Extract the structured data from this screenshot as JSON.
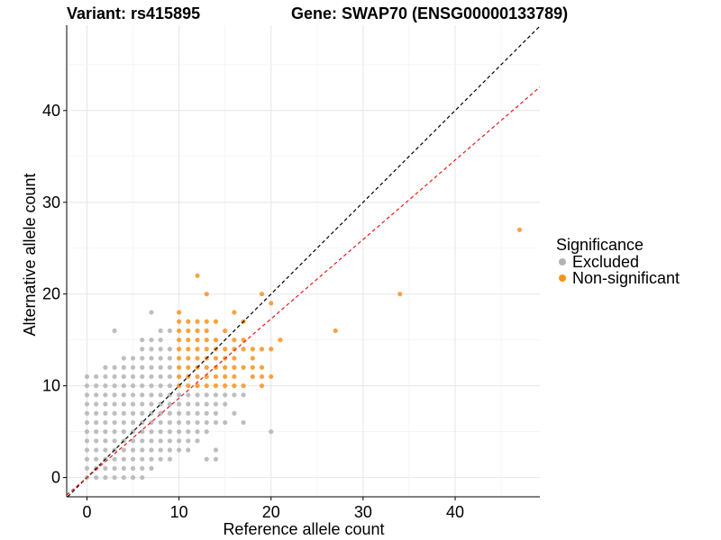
{
  "header": {
    "variant": "Variant: rs415895",
    "gene": "Gene: SWAP70 (ENSG00000133789)"
  },
  "legend": {
    "title": "Significance",
    "items": [
      {
        "label": "Excluded",
        "color": "#b3b3b3"
      },
      {
        "label": "Non-significant",
        "color": "#f7931e"
      }
    ]
  },
  "chart_data": {
    "type": "scatter",
    "xlabel": "Reference allele count",
    "ylabel": "Alternative allele count",
    "xlim": [
      -2.2,
      49.2
    ],
    "ylim": [
      -2.1,
      49.3
    ],
    "xticks": [
      0,
      10,
      20,
      30,
      40
    ],
    "yticks": [
      0,
      10,
      20,
      30,
      40
    ],
    "grid": true,
    "legend_position": "right",
    "reference_lines": [
      {
        "slope": 1.0,
        "intercept": 0,
        "color": "#000000",
        "style": "dashed"
      },
      {
        "slope": 0.865,
        "intercept": 0,
        "color": "#e41a1c",
        "style": "dashed"
      }
    ],
    "series": [
      {
        "name": "Excluded",
        "color": "#b3b3b3",
        "points": [
          [
            0,
            0
          ],
          [
            0,
            1
          ],
          [
            0,
            2
          ],
          [
            0,
            3
          ],
          [
            0,
            4
          ],
          [
            0,
            5
          ],
          [
            0,
            6
          ],
          [
            0,
            7
          ],
          [
            0,
            8
          ],
          [
            0,
            9
          ],
          [
            0,
            10
          ],
          [
            0,
            11
          ],
          [
            1,
            0
          ],
          [
            1,
            1
          ],
          [
            1,
            2
          ],
          [
            1,
            3
          ],
          [
            1,
            4
          ],
          [
            1,
            5
          ],
          [
            1,
            6
          ],
          [
            1,
            7
          ],
          [
            1,
            8
          ],
          [
            1,
            9
          ],
          [
            1,
            10
          ],
          [
            1,
            11
          ],
          [
            2,
            0
          ],
          [
            2,
            1
          ],
          [
            2,
            2
          ],
          [
            2,
            3
          ],
          [
            2,
            4
          ],
          [
            2,
            5
          ],
          [
            2,
            6
          ],
          [
            2,
            7
          ],
          [
            2,
            8
          ],
          [
            2,
            9
          ],
          [
            2,
            10
          ],
          [
            2,
            11
          ],
          [
            2,
            12
          ],
          [
            3,
            0
          ],
          [
            3,
            1
          ],
          [
            3,
            2
          ],
          [
            3,
            3
          ],
          [
            3,
            4
          ],
          [
            3,
            5
          ],
          [
            3,
            6
          ],
          [
            3,
            7
          ],
          [
            3,
            8
          ],
          [
            3,
            9
          ],
          [
            3,
            10
          ],
          [
            3,
            11
          ],
          [
            3,
            12
          ],
          [
            3,
            16
          ],
          [
            4,
            0
          ],
          [
            4,
            1
          ],
          [
            4,
            2
          ],
          [
            4,
            3
          ],
          [
            4,
            4
          ],
          [
            4,
            5
          ],
          [
            4,
            6
          ],
          [
            4,
            7
          ],
          [
            4,
            8
          ],
          [
            4,
            9
          ],
          [
            4,
            10
          ],
          [
            4,
            11
          ],
          [
            4,
            12
          ],
          [
            4,
            13
          ],
          [
            5,
            0
          ],
          [
            5,
            1
          ],
          [
            5,
            2
          ],
          [
            5,
            3
          ],
          [
            5,
            4
          ],
          [
            5,
            5
          ],
          [
            5,
            6
          ],
          [
            5,
            7
          ],
          [
            5,
            8
          ],
          [
            5,
            9
          ],
          [
            5,
            10
          ],
          [
            5,
            11
          ],
          [
            5,
            12
          ],
          [
            5,
            13
          ],
          [
            6,
            0
          ],
          [
            6,
            1
          ],
          [
            6,
            2
          ],
          [
            6,
            3
          ],
          [
            6,
            4
          ],
          [
            6,
            5
          ],
          [
            6,
            6
          ],
          [
            6,
            7
          ],
          [
            6,
            8
          ],
          [
            6,
            9
          ],
          [
            6,
            10
          ],
          [
            6,
            11
          ],
          [
            6,
            12
          ],
          [
            6,
            13
          ],
          [
            6,
            14
          ],
          [
            6,
            15
          ],
          [
            7,
            1
          ],
          [
            7,
            2
          ],
          [
            7,
            3
          ],
          [
            7,
            4
          ],
          [
            7,
            5
          ],
          [
            7,
            6
          ],
          [
            7,
            7
          ],
          [
            7,
            8
          ],
          [
            7,
            9
          ],
          [
            7,
            10
          ],
          [
            7,
            11
          ],
          [
            7,
            12
          ],
          [
            7,
            13
          ],
          [
            7,
            14
          ],
          [
            7,
            15
          ],
          [
            7,
            18
          ],
          [
            8,
            2
          ],
          [
            8,
            3
          ],
          [
            8,
            4
          ],
          [
            8,
            5
          ],
          [
            8,
            6
          ],
          [
            8,
            7
          ],
          [
            8,
            8
          ],
          [
            8,
            9
          ],
          [
            8,
            10
          ],
          [
            8,
            11
          ],
          [
            8,
            12
          ],
          [
            8,
            13
          ],
          [
            8,
            14
          ],
          [
            8,
            15
          ],
          [
            8,
            16
          ],
          [
            9,
            2
          ],
          [
            9,
            3
          ],
          [
            9,
            4
          ],
          [
            9,
            5
          ],
          [
            9,
            6
          ],
          [
            9,
            7
          ],
          [
            9,
            8
          ],
          [
            9,
            9
          ],
          [
            9,
            10
          ],
          [
            9,
            11
          ],
          [
            9,
            12
          ],
          [
            9,
            13
          ],
          [
            9,
            14
          ],
          [
            9,
            16
          ],
          [
            10,
            3
          ],
          [
            10,
            4
          ],
          [
            10,
            5
          ],
          [
            10,
            6
          ],
          [
            10,
            7
          ],
          [
            10,
            8
          ],
          [
            10,
            9
          ],
          [
            11,
            3
          ],
          [
            11,
            4
          ],
          [
            11,
            5
          ],
          [
            11,
            6
          ],
          [
            11,
            7
          ],
          [
            11,
            8
          ],
          [
            11,
            9
          ],
          [
            12,
            4
          ],
          [
            12,
            5
          ],
          [
            12,
            6
          ],
          [
            12,
            7
          ],
          [
            12,
            8
          ],
          [
            12,
            9
          ],
          [
            13,
            2
          ],
          [
            13,
            5
          ],
          [
            13,
            6
          ],
          [
            13,
            7
          ],
          [
            13,
            8
          ],
          [
            13,
            9
          ],
          [
            14,
            2
          ],
          [
            14,
            3
          ],
          [
            14,
            6
          ],
          [
            14,
            7
          ],
          [
            14,
            8
          ],
          [
            14,
            9
          ],
          [
            15,
            6
          ],
          [
            15,
            8
          ],
          [
            15,
            9
          ],
          [
            16,
            7
          ],
          [
            16,
            9
          ],
          [
            17,
            6
          ],
          [
            17,
            9
          ],
          [
            20,
            5
          ]
        ]
      },
      {
        "name": "Non-significant",
        "color": "#f7931e",
        "points": [
          [
            10,
            10
          ],
          [
            10,
            11
          ],
          [
            10,
            12
          ],
          [
            10,
            13
          ],
          [
            10,
            14
          ],
          [
            10,
            15
          ],
          [
            10,
            16
          ],
          [
            10,
            17
          ],
          [
            10,
            18
          ],
          [
            11,
            10
          ],
          [
            11,
            11
          ],
          [
            11,
            12
          ],
          [
            11,
            13
          ],
          [
            11,
            14
          ],
          [
            11,
            15
          ],
          [
            11,
            16
          ],
          [
            11,
            17
          ],
          [
            12,
            10
          ],
          [
            12,
            11
          ],
          [
            12,
            12
          ],
          [
            12,
            13
          ],
          [
            12,
            14
          ],
          [
            12,
            15
          ],
          [
            12,
            16
          ],
          [
            12,
            17
          ],
          [
            12,
            22
          ],
          [
            13,
            10
          ],
          [
            13,
            11
          ],
          [
            13,
            12
          ],
          [
            13,
            13
          ],
          [
            13,
            14
          ],
          [
            13,
            15
          ],
          [
            13,
            16
          ],
          [
            13,
            17
          ],
          [
            13,
            20
          ],
          [
            14,
            10
          ],
          [
            14,
            11
          ],
          [
            14,
            12
          ],
          [
            14,
            13
          ],
          [
            14,
            14
          ],
          [
            14,
            15
          ],
          [
            14,
            17
          ],
          [
            15,
            10
          ],
          [
            15,
            11
          ],
          [
            15,
            12
          ],
          [
            15,
            13
          ],
          [
            15,
            14
          ],
          [
            15,
            16
          ],
          [
            16,
            10
          ],
          [
            16,
            11
          ],
          [
            16,
            12
          ],
          [
            16,
            13
          ],
          [
            16,
            14
          ],
          [
            16,
            15
          ],
          [
            16,
            18
          ],
          [
            17,
            10
          ],
          [
            17,
            12
          ],
          [
            17,
            14
          ],
          [
            17,
            15
          ],
          [
            17,
            17
          ],
          [
            18,
            11
          ],
          [
            18,
            12
          ],
          [
            18,
            13
          ],
          [
            18,
            14
          ],
          [
            19,
            10
          ],
          [
            19,
            11
          ],
          [
            19,
            12
          ],
          [
            19,
            14
          ],
          [
            19,
            20
          ],
          [
            20,
            11
          ],
          [
            20,
            14
          ],
          [
            20,
            19
          ],
          [
            21,
            15
          ],
          [
            27,
            16
          ],
          [
            34,
            20
          ],
          [
            47,
            27
          ]
        ]
      }
    ]
  }
}
